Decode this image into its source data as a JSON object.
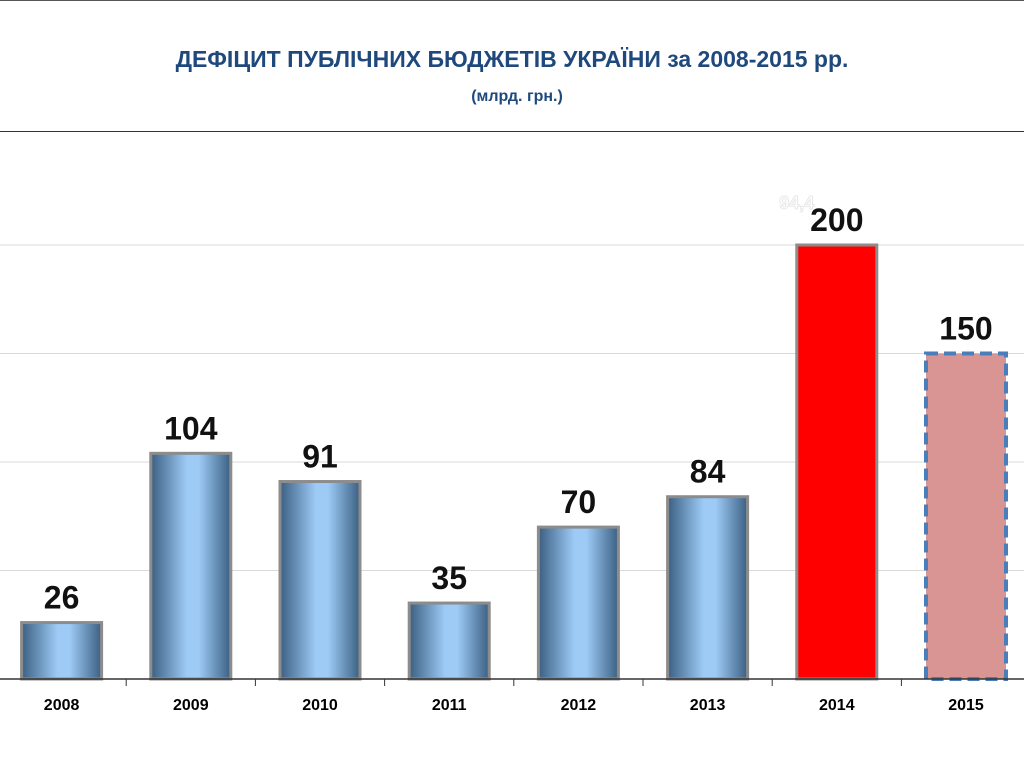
{
  "title": "ДЕФІЦИТ ПУБЛІЧНИХ БЮДЖЕТІВ УКРАЇНИ за 2008-2015 рр.",
  "subtitle": "(млрд. грн.)",
  "ghost_label": "94,4",
  "colors": {
    "title": "#1F497D",
    "bar_blue_light": "#9DCBF6",
    "bar_blue_dark": "#3B5F82",
    "bar_2014": "#FF0000",
    "bar_2015": "#D99594",
    "bar_2015_border": "#4A7EBB",
    "bar_outline": "#8C8C8C",
    "grid": "#D9D9D9"
  },
  "chart_data": {
    "type": "bar",
    "categories": [
      "2008",
      "2009",
      "2010",
      "2011",
      "2012",
      "2013",
      "2014",
      "2015"
    ],
    "values": [
      26,
      104,
      91,
      35,
      70,
      84,
      200,
      150
    ],
    "data_labels": [
      "26",
      "104",
      "91",
      "35",
      "70",
      "84",
      "200",
      "150"
    ],
    "styles": [
      "blue",
      "blue",
      "blue",
      "blue",
      "blue",
      "blue",
      "red",
      "forecast"
    ],
    "ylim": [
      0,
      250
    ],
    "grid": true,
    "legend": "none"
  }
}
